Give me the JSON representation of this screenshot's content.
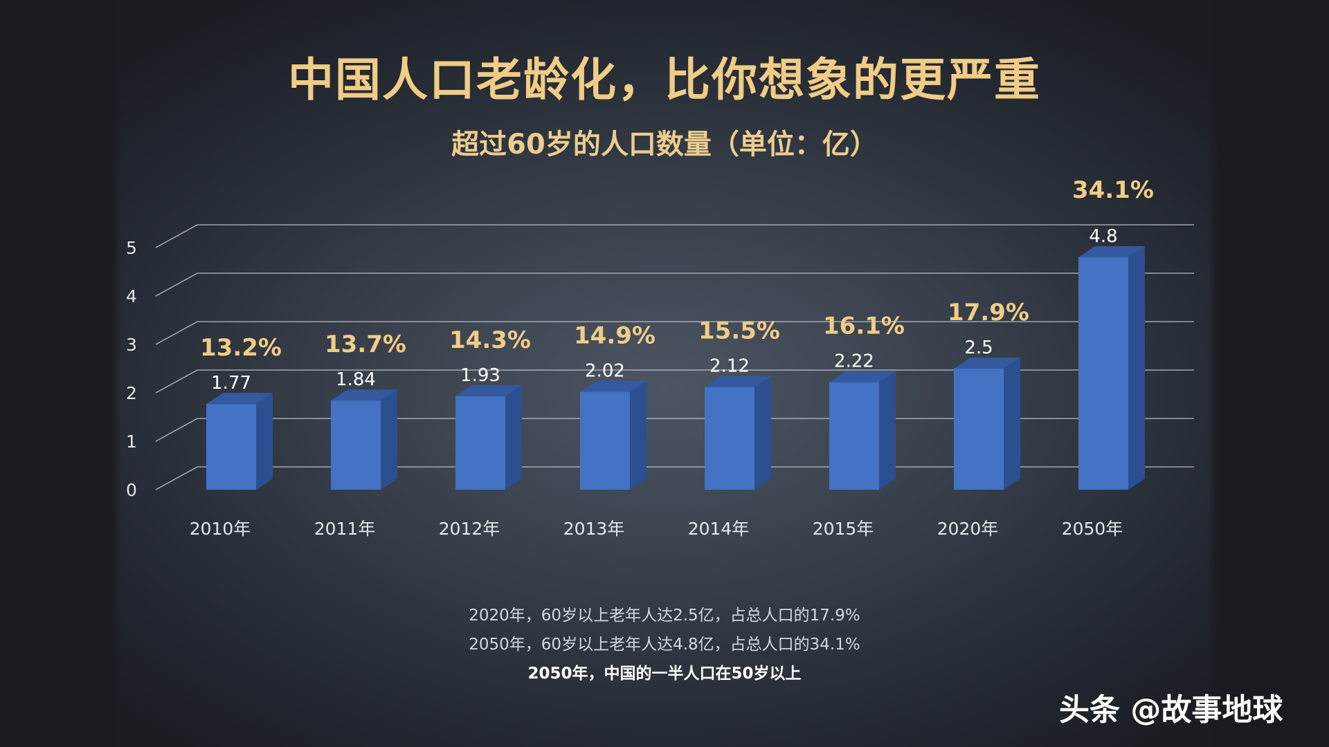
{
  "header": {
    "title": "中国人口老龄化，比你想象的更严重",
    "subtitle": "超过60岁的人口数量（单位：亿）"
  },
  "chart_data": {
    "type": "bar",
    "categories": [
      "2010年",
      "2011年",
      "2012年",
      "2013年",
      "2014年",
      "2015年",
      "2020年",
      "2050年"
    ],
    "values": [
      1.77,
      1.84,
      1.93,
      2.02,
      2.12,
      2.22,
      2.5,
      4.8
    ],
    "value_labels": [
      "1.77",
      "1.84",
      "1.93",
      "2.02",
      "2.12",
      "2.22",
      "2.5",
      "4.8"
    ],
    "percent_labels": [
      "13.2%",
      "13.7%",
      "14.3%",
      "14.9%",
      "15.5%",
      "16.1%",
      "17.9%",
      "34.1%"
    ],
    "yticks": [
      0,
      1,
      2,
      3,
      4,
      5
    ],
    "ylim": [
      0,
      5
    ],
    "grid": true,
    "colors": {
      "bar_front": "#4472c4",
      "bar_side": "#2c4f90",
      "bar_top": "#35599e",
      "percent": "#f0cc85",
      "grid": "#c9ccd2",
      "axis_text": "#e6e8ec"
    }
  },
  "notes": {
    "line1": "2020年，60岁以上老年人达2.5亿，占总人口的17.9%",
    "line2": "2050年，60岁以上老年人达4.8亿，占总人口的34.1%",
    "line3": "2050年，中国的一半人口在50岁以上"
  },
  "watermark": "头条 @故事地球"
}
